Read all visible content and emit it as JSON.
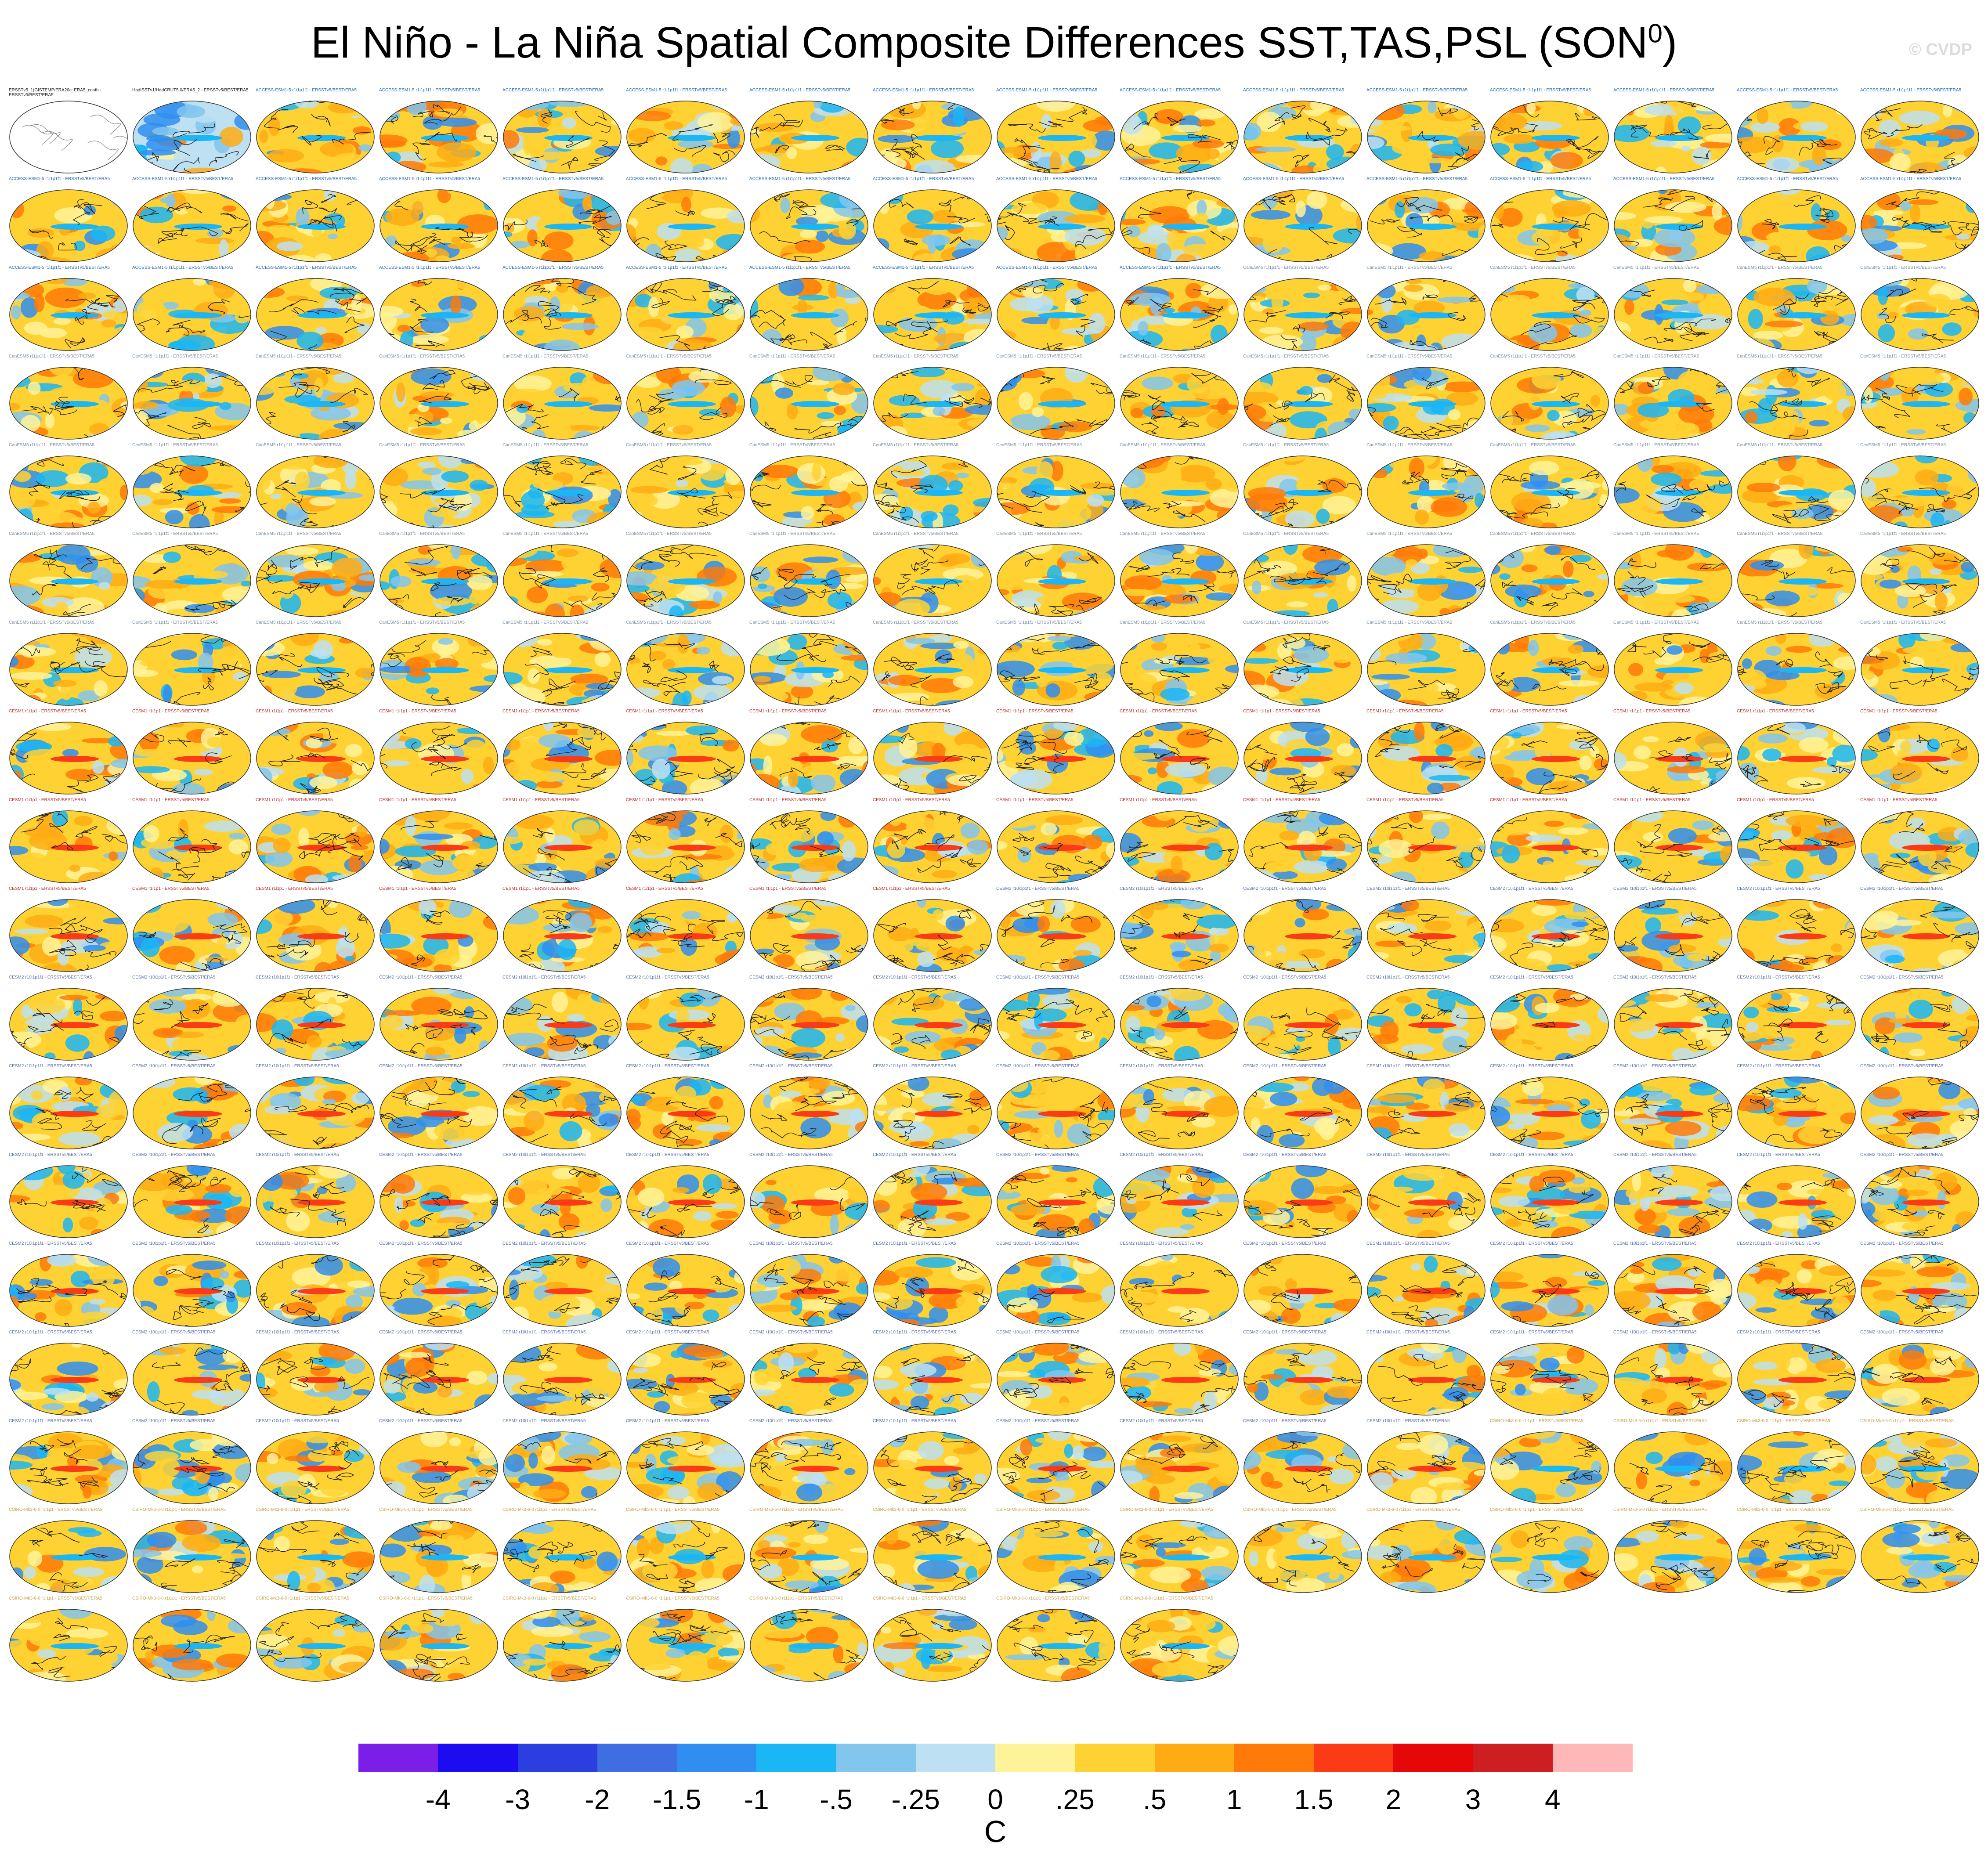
{
  "title": "El Niño - La Niña Spatial Composite Differences SST,TAS,PSL (SON",
  "title_sup": "0",
  "title_close": ")",
  "watermark": "© CVDP",
  "chart_data": {
    "type": "heatmap",
    "layout": {
      "rows": 19,
      "columns": 16
    },
    "panels": [
      {
        "label": "ERSSTv5_1(GISTEMP/ERA20c_ERA5_contb - ERSSTv5/BEST/ERA5",
        "kind": "observations-reference"
      },
      {
        "label": "HadISSTv1/HadCRUT5.0/ERA5_2 - ERSSTv5/BEST/ERA5",
        "kind": "observations"
      },
      {
        "label": "ACCESS-ESM1-5 r1i1p1f1 - ERSSTv5/BEST/ERA5",
        "kind": "model",
        "model": "ACCESS-ESM1-5",
        "count": 40
      },
      {
        "label": "CanESM5 r1i1p1f1 - ERSSTv5/BEST/ERA5",
        "kind": "model",
        "model": "CanESM5",
        "count": 70
      },
      {
        "label": "CESM1 r1i1p1 - ERSSTv5/BEST/ERA5",
        "kind": "model",
        "model": "CESM1",
        "count": 40
      },
      {
        "label": "CESM2 r10i1p1f1 - ERSSTv5/BEST/ERA5",
        "kind": "model",
        "model": "CESM2",
        "count": 100
      },
      {
        "label": "CSIRO-Mk3-6-0 r1i1p1 - ERSSTv5/BEST/ERA5",
        "kind": "model",
        "model": "CSIRO-Mk3-6-0",
        "count": 30
      }
    ],
    "colorbar": {
      "colors": [
        "#7a1ee8",
        "#1e0cf0",
        "#2b3fe0",
        "#3e6ee2",
        "#2f8ef0",
        "#1ab6f6",
        "#82c6ee",
        "#bde0f2",
        "#fff399",
        "#ffd233",
        "#ffab14",
        "#ff7a08",
        "#fb3b16",
        "#e60708",
        "#cd1f21",
        "#ffb8b8"
      ],
      "labels": [
        "-4",
        "-3",
        "-2",
        "-1.5",
        "-1",
        "-.5",
        "-.25",
        "0",
        ".25",
        ".5",
        "1",
        "1.5",
        "2",
        "3",
        "4"
      ],
      "unit": "C"
    }
  }
}
